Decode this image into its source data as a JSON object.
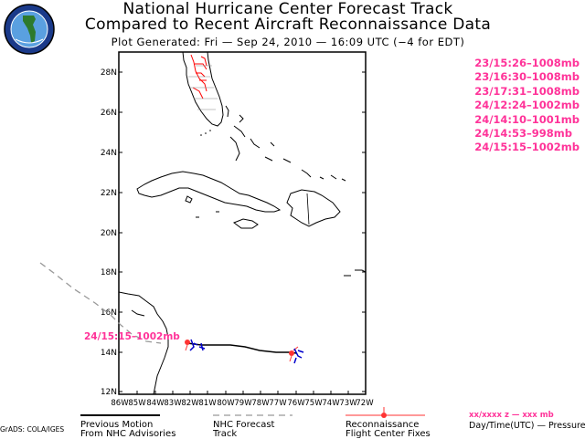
{
  "header": {
    "title_line1": "National Hurricane Center Forecast Track",
    "title_line2": "Compared to Recent Aircraft Reconnaissance Data",
    "plot_generated": "Plot Generated:  Fri — Sep 24, 2010 — 16:09 UTC   (−4 for EDT)"
  },
  "logo": {
    "name": "florida-water-management-logo"
  },
  "map": {
    "lat_labels": [
      "28N",
      "26N",
      "24N",
      "22N",
      "20N",
      "18N",
      "16N",
      "14N",
      "12N"
    ],
    "lon_labels": [
      "86W",
      "85W",
      "84W",
      "83W",
      "82W",
      "81W",
      "80W",
      "79W",
      "78W",
      "77W",
      "76W",
      "75W",
      "74W",
      "73W",
      "72W"
    ],
    "track_annotation": "24/15:15–1002mb"
  },
  "recon_fixes": [
    "23/15:26–1008mb",
    "23/16:30–1008mb",
    "23/17:31–1008mb",
    "24/12:24–1002mb",
    "24/14:10–1001mb",
    "24/14:53–998mb",
    "24/15:15–1002mb"
  ],
  "legend": {
    "previous_motion": [
      "Previous Motion",
      "From NHC Advisories"
    ],
    "forecast_track": [
      "NHC Forecast",
      "Track"
    ],
    "recon": [
      "Reconnaissance",
      "Flight Center Fixes"
    ],
    "key_format": "xx/xxxx z     — xxx mb",
    "key_caption": "Day/Time(UTC) — Pressure",
    "grads": "GrADS: COLA/IGES"
  },
  "colors": {
    "fix_text": "#ff3399",
    "fix_marker": "#ff3333",
    "track": "#000000",
    "wind": "#0000cc"
  }
}
